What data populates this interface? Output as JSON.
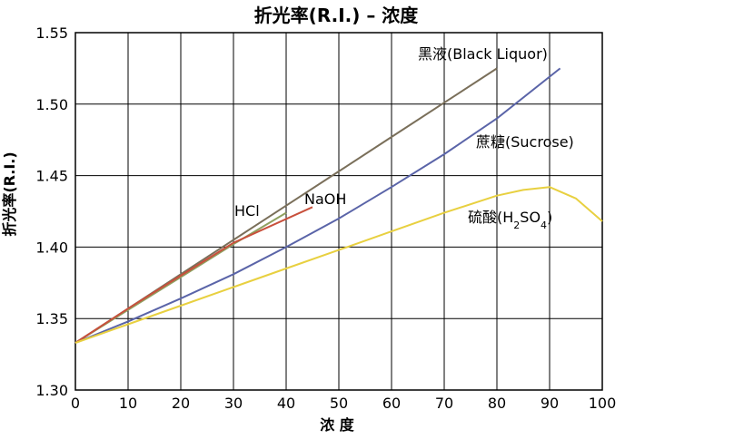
{
  "chart_data": {
    "type": "line",
    "title": "折光率(R.I.) – 浓度",
    "xlabel": "浓 度",
    "ylabel": "折光率(R.I.)",
    "xlim": [
      0,
      100
    ],
    "ylim": [
      1.3,
      1.55
    ],
    "xticks": [
      0,
      10,
      20,
      30,
      40,
      50,
      60,
      70,
      80,
      90,
      100
    ],
    "yticks": [
      1.3,
      1.35,
      1.4,
      1.45,
      1.5,
      1.55
    ],
    "grid": true,
    "series": [
      {
        "name": "黑液(Black Liquor)",
        "color": "#7a6f5a",
        "x": [
          0,
          10,
          20,
          30,
          40,
          50,
          60,
          70,
          80
        ],
        "y": [
          1.333,
          1.357,
          1.381,
          1.405,
          1.429,
          1.453,
          1.477,
          1.501,
          1.525
        ]
      },
      {
        "name": "蔗糖(Sucrose)",
        "color": "#5a64a8",
        "x": [
          0,
          10,
          20,
          30,
          40,
          50,
          60,
          70,
          80,
          92
        ],
        "y": [
          1.333,
          1.348,
          1.364,
          1.381,
          1.4,
          1.42,
          1.442,
          1.465,
          1.49,
          1.525
        ]
      },
      {
        "name": "HCl",
        "color": "#8fa060",
        "x": [
          0,
          10,
          20,
          30,
          40
        ],
        "y": [
          1.333,
          1.356,
          1.379,
          1.402,
          1.424
        ]
      },
      {
        "name": "NaOH",
        "color": "#c8503c",
        "x": [
          0,
          10,
          20,
          30,
          45
        ],
        "y": [
          1.333,
          1.357,
          1.38,
          1.403,
          1.428
        ]
      },
      {
        "name": "硫酸(H2SO4)",
        "color": "#e8d040",
        "x": [
          0,
          10,
          20,
          30,
          40,
          50,
          60,
          70,
          80,
          85,
          90,
          95,
          100
        ],
        "y": [
          1.333,
          1.346,
          1.359,
          1.372,
          1.385,
          1.398,
          1.411,
          1.424,
          1.436,
          1.44,
          1.442,
          1.434,
          1.418
        ]
      }
    ]
  }
}
